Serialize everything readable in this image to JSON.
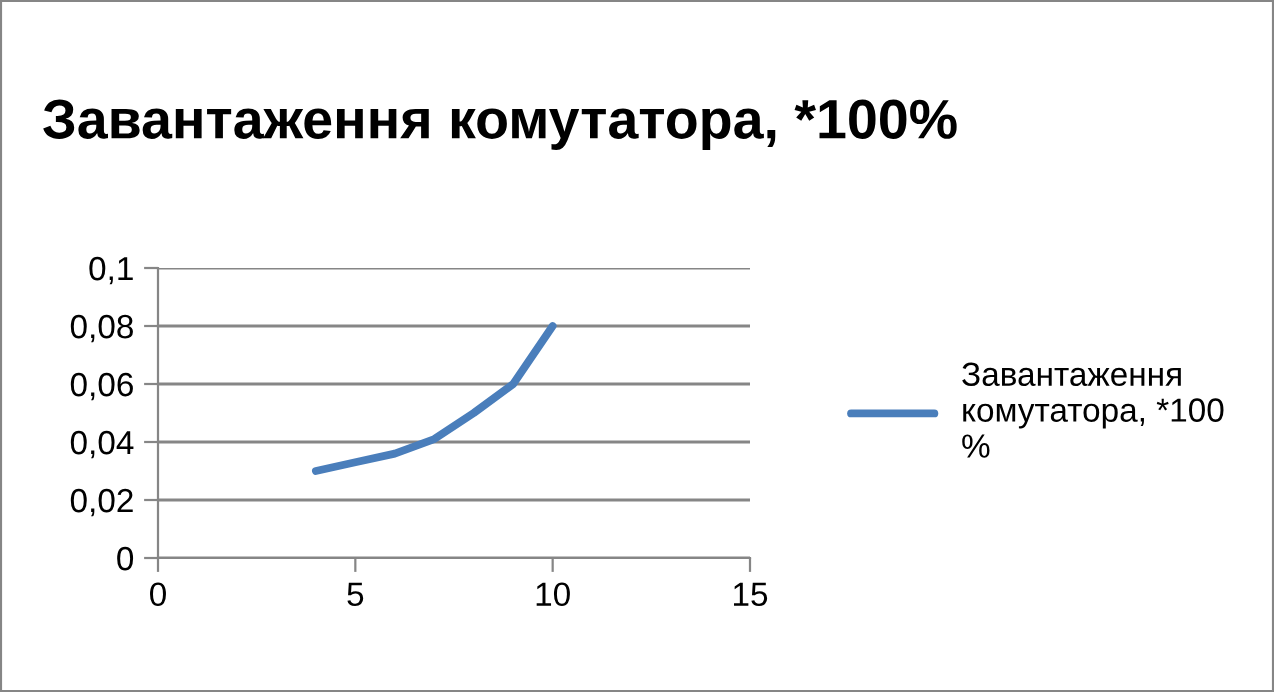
{
  "chart_data": {
    "type": "line",
    "title": "Завантаження комутатора, *100%",
    "x": [
      4,
      5,
      6,
      7,
      8,
      9,
      10
    ],
    "series": [
      {
        "name": "Завантаження комутатора, *100 %",
        "color": "#4a7ebb",
        "values": [
          0.03,
          0.033,
          0.036,
          0.041,
          0.05,
          0.06,
          0.08
        ]
      }
    ],
    "xlim": [
      0,
      15
    ],
    "xticks": [
      0,
      5,
      10,
      15
    ],
    "ylim": [
      0,
      0.1
    ],
    "yticks": [
      {
        "value": 0,
        "label": "0"
      },
      {
        "value": 0.02,
        "label": "0,02"
      },
      {
        "value": 0.04,
        "label": "0,04"
      },
      {
        "value": 0.06,
        "label": "0,06"
      },
      {
        "value": 0.08,
        "label": "0,08"
      },
      {
        "value": 0.1,
        "label": "0,1"
      }
    ],
    "grid": "y",
    "legend": "right",
    "marker": "none",
    "line_style": "solid"
  }
}
